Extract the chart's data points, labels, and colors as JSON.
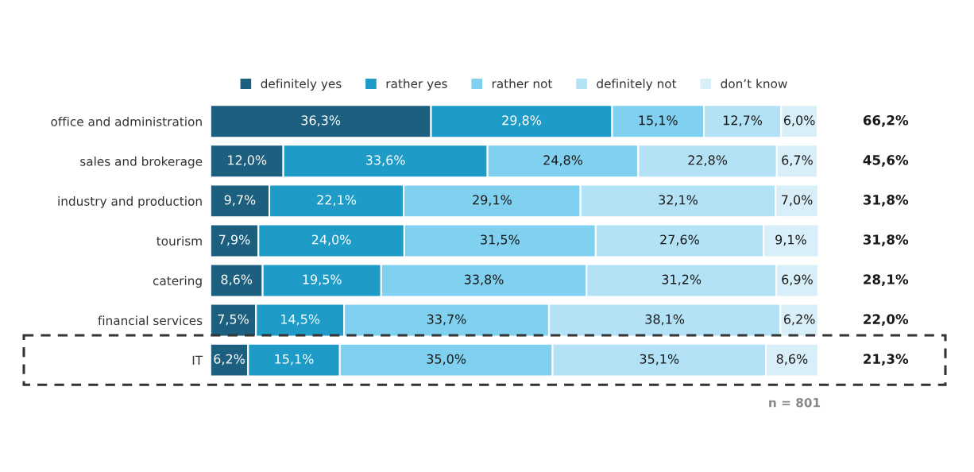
{
  "chart_data": {
    "type": "bar",
    "orientation": "horizontal",
    "stacked": true,
    "categories": [
      "office and administration",
      "sales and brokerage",
      "industry and production",
      "tourism",
      "catering",
      "financial services",
      "IT"
    ],
    "series": [
      {
        "name": "definitely yes",
        "color": "#1d5f7f",
        "values": [
          36.3,
          12.0,
          9.7,
          7.9,
          8.6,
          7.5,
          6.2
        ],
        "value_labels": [
          "36,3%",
          "12,0%",
          "9,7%",
          "7,9%",
          "8,6%",
          "7,5%",
          "6,2%"
        ]
      },
      {
        "name": "rather yes",
        "color": "#1e9bc6",
        "values": [
          29.8,
          33.6,
          22.1,
          24.0,
          19.5,
          14.5,
          15.1
        ],
        "value_labels": [
          "29,8%",
          "33,6%",
          "22,1%",
          "24,0%",
          "19,5%",
          "14,5%",
          "15,1%"
        ]
      },
      {
        "name": "rather not",
        "color": "#80d0ef",
        "values": [
          15.1,
          24.8,
          29.1,
          31.5,
          33.8,
          33.7,
          35.0
        ],
        "value_labels": [
          "15,1%",
          "24,8%",
          "29,1%",
          "31,5%",
          "33,8%",
          "33,7%",
          "35,0%"
        ]
      },
      {
        "name": "definitely not",
        "color": "#b3e2f6",
        "values": [
          12.7,
          22.8,
          32.1,
          27.6,
          31.2,
          38.1,
          35.1
        ],
        "value_labels": [
          "12,7%",
          "22,8%",
          "32,1%",
          "27,6%",
          "31,2%",
          "38,1%",
          "35,1%"
        ]
      },
      {
        "name": "don’t know",
        "color": "#d8eff9",
        "values": [
          6.0,
          6.7,
          7.0,
          9.1,
          6.9,
          6.2,
          8.6
        ],
        "value_labels": [
          "6,0%",
          "6,7%",
          "7,0%",
          "9,1%",
          "6,9%",
          "6,2%",
          "8,6%"
        ]
      }
    ],
    "xlim": [
      0,
      100
    ],
    "tick_labels": "y",
    "legend": "top",
    "grid": false,
    "annotations": [
      "66,2%",
      "45,6%",
      "31,8%",
      "31,8%",
      "28,1%",
      "22,0%",
      "21,3%",
      "n = 801"
    ]
  }
}
